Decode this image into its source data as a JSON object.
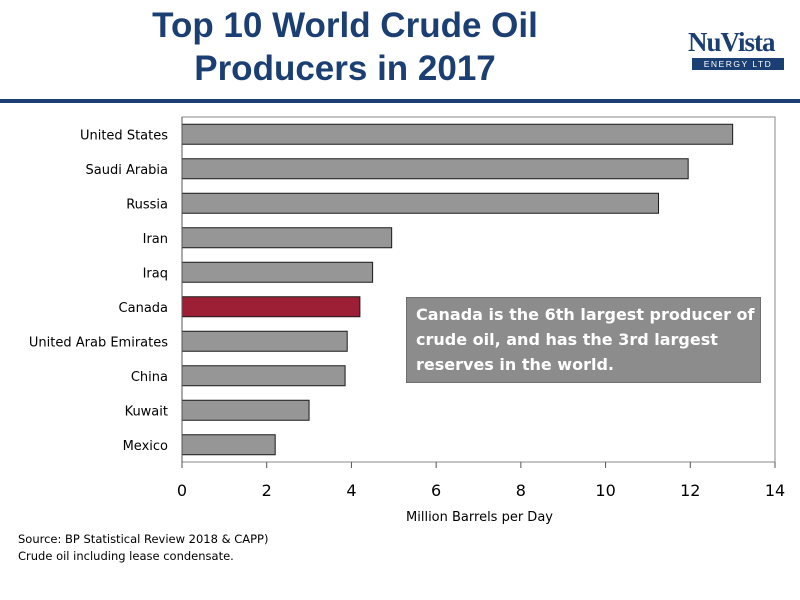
{
  "header": {
    "title_line1": "Top 10 World Crude Oil",
    "title_line2": "Producers in 2017"
  },
  "logo": {
    "name": "NuVista",
    "sub": "ENERGY LTD"
  },
  "chart_data": {
    "type": "bar",
    "orientation": "horizontal",
    "title": "",
    "xlabel": "Million Barrels per Day",
    "ylabel": "",
    "xlim": [
      0,
      14
    ],
    "xticks": [
      0,
      2,
      4,
      6,
      8,
      10,
      12,
      14
    ],
    "grid": false,
    "categories": [
      "United States",
      "Saudi Arabia",
      "Russia",
      "Iran",
      "Iraq",
      "Canada",
      "United Arab Emirates",
      "China",
      "Kuwait",
      "Mexico"
    ],
    "values": [
      13.0,
      11.95,
      11.25,
      4.95,
      4.5,
      4.2,
      3.9,
      3.85,
      3.0,
      2.2
    ],
    "colors": {
      "default": "#969696",
      "highlight": "#9c1f35",
      "highlight_category": "Canada"
    }
  },
  "annotation": {
    "text": "Canada is the 6th largest producer of crude oil, and has the 3rd largest reserves in the world."
  },
  "footer": {
    "source": "Source: BP Statistical Review 2018 & CAPP)",
    "note": "Crude oil including lease condensate."
  }
}
